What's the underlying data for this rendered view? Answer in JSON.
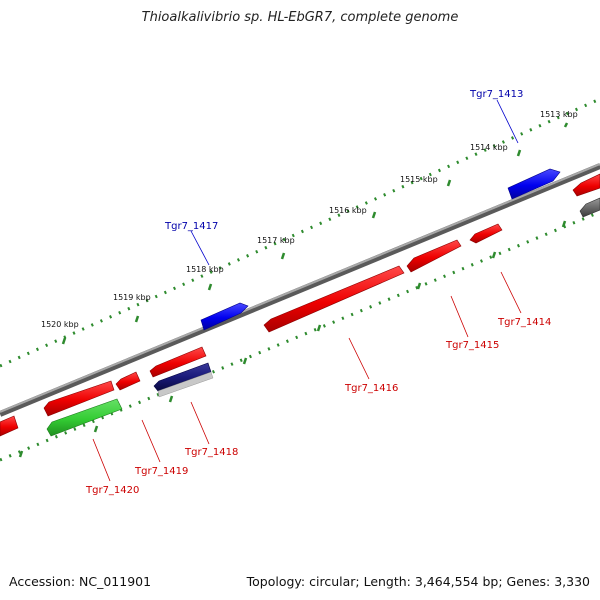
{
  "title": "Thioalkalivibrio sp. HL-EbGR7, complete genome",
  "footer": {
    "accession": "Accession: NC_011901",
    "stats": "Topology: circular; Length: 3,464,554 bp; Genes: 3,330"
  },
  "colors": {
    "backbone": "#7a7a7a",
    "forward_gene": "#0000ee",
    "reverse_gene": "#ee0000",
    "rna_gene": "#33cc33",
    "pseudo_gene": "#1a1a7a",
    "tick_dots": "#2e8b2e",
    "forward_label": "#0000aa",
    "reverse_label": "#cc0000"
  },
  "scale": {
    "unit": "kbp",
    "ticks": [
      "1513 kbp",
      "1514 kbp",
      "1515 kbp",
      "1516 kbp",
      "1517 kbp",
      "1518 kbp",
      "1519 kbp",
      "1520 kbp"
    ]
  },
  "genes": [
    {
      "id": "Tgr7_1413",
      "strand": "forward",
      "type": "cds",
      "labeled": true
    },
    {
      "id": "Tgr7_1414",
      "strand": "reverse",
      "type": "cds",
      "labeled": true
    },
    {
      "id": "Tgr7_1415",
      "strand": "reverse",
      "type": "cds",
      "labeled": true
    },
    {
      "id": "Tgr7_1416",
      "strand": "reverse",
      "type": "cds",
      "labeled": true
    },
    {
      "id": "Tgr7_1417",
      "strand": "forward",
      "type": "cds",
      "labeled": true
    },
    {
      "id": "Tgr7_1418",
      "strand": "reverse",
      "type": "pseudo",
      "labeled": true
    },
    {
      "id": "Tgr7_1419",
      "strand": "reverse",
      "type": "cds",
      "labeled": true
    },
    {
      "id": "Tgr7_1420",
      "strand": "reverse",
      "type": "rna",
      "labeled": true
    },
    {
      "id": "",
      "strand": "reverse",
      "type": "cds",
      "labeled": false
    },
    {
      "id": "",
      "strand": "reverse",
      "type": "cds",
      "labeled": false
    },
    {
      "id": "",
      "strand": "reverse",
      "type": "cds",
      "labeled": false
    },
    {
      "id": "",
      "strand": "reverse",
      "type": "pseudo",
      "labeled": false
    }
  ]
}
